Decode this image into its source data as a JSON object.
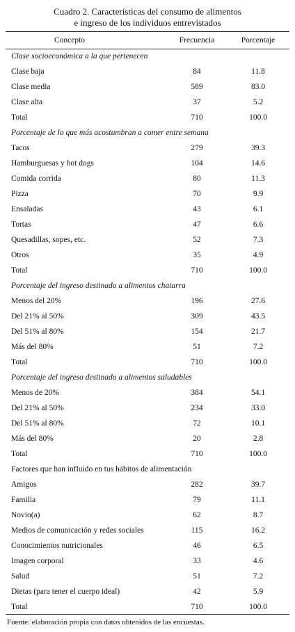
{
  "header": {
    "title_lines": [
      "Cuadro 2.  Características del consumo de alimentos",
      "e ingreso de los individuos entrevistados"
    ]
  },
  "table": {
    "columns": [
      "Concepto",
      "Frecuencia",
      "Porcentaje"
    ],
    "sections": [
      {
        "title": "Clase socioeconómica a la que pertenecen",
        "italic": true,
        "rows": [
          [
            "Clase baja",
            84,
            "11.8"
          ],
          [
            "Clase media",
            589,
            "83.0"
          ],
          [
            "Clase alta",
            37,
            "5.2"
          ],
          [
            "Total",
            710,
            "100.0"
          ]
        ]
      },
      {
        "title": "Porcentaje de lo que más acostumbran a comer entre semana",
        "italic": true,
        "rows": [
          [
            "Tacos",
            279,
            "39.3"
          ],
          [
            "Hamburguesas y hot dogs",
            104,
            "14.6"
          ],
          [
            "Comida corrida",
            80,
            "11.3"
          ],
          [
            "Pizza",
            70,
            "9.9"
          ],
          [
            "Ensaladas",
            43,
            "6.1"
          ],
          [
            "Tortas",
            47,
            "6.6"
          ],
          [
            "Quesadillas, sopes, etc.",
            52,
            "7.3"
          ],
          [
            "Otros",
            35,
            "4.9"
          ],
          [
            "Total",
            710,
            "100.0"
          ]
        ]
      },
      {
        "title": "Porcentaje del ingreso destinado a alimentos chatarra",
        "italic": true,
        "rows": [
          [
            "Menos del 20%",
            196,
            "27.6"
          ],
          [
            "Del 21% al 50%",
            309,
            "43.5"
          ],
          [
            "Del 51% al 80%",
            154,
            "21.7"
          ],
          [
            "Más del 80%",
            51,
            "7.2"
          ],
          [
            "Total",
            710,
            "100.0"
          ]
        ]
      },
      {
        "title": "Porcentaje del ingreso destinado a alimentos saludables",
        "italic": true,
        "rows": [
          [
            "Menos de 20%",
            384,
            "54.1"
          ],
          [
            "Del 21% al 50%",
            234,
            "33.0"
          ],
          [
            "Del 51% al 80%",
            72,
            "10.1"
          ],
          [
            "Más del 80%",
            20,
            "2.8"
          ],
          [
            "Total",
            710,
            "100.0"
          ]
        ]
      },
      {
        "title": "Factores que han influido en tus hábitos de alimentación",
        "italic": false,
        "rows": [
          [
            "Amigos",
            282,
            "39.7"
          ],
          [
            "Familia",
            79,
            "11.1"
          ],
          [
            "Novio(a)",
            62,
            "8.7"
          ],
          [
            "Medios de comunicación y redes sociales",
            115,
            "16.2"
          ],
          [
            "Conocimientos nutricionales",
            46,
            "6.5"
          ],
          [
            "Imagen corporal",
            33,
            "4.6"
          ],
          [
            "Salud",
            51,
            "7.2"
          ],
          [
            "Dietas (para tener el cuerpo ideal)",
            42,
            "5.9"
          ],
          [
            "Total",
            710,
            "100.0"
          ]
        ]
      }
    ]
  },
  "footer": {
    "source": "Fuente: elaboración propia con datos obtenidos de las encuestas."
  }
}
